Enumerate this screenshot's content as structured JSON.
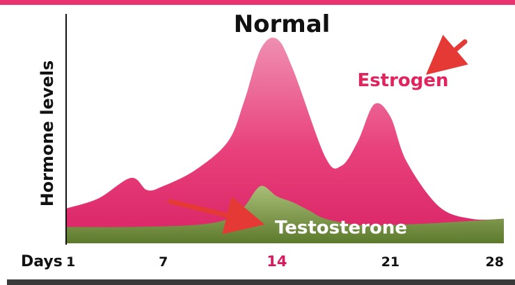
{
  "chart_data": {
    "type": "area",
    "title": "Normal",
    "xlabel": "Days",
    "ylabel": "Hormone levels",
    "x_ticks": [
      "1",
      "7",
      "14",
      "21",
      "28"
    ],
    "highlight_tick": "14",
    "xlim": [
      1,
      28
    ],
    "ylim": [
      0,
      1
    ],
    "series": [
      {
        "name": "Estrogen",
        "color": "#e8336f",
        "x": [
          1,
          3,
          5,
          6,
          7,
          9,
          11,
          12,
          13,
          14,
          15,
          17,
          18,
          19,
          20,
          21,
          22,
          24,
          26,
          28
        ],
        "values": [
          0.17,
          0.22,
          0.32,
          0.26,
          0.28,
          0.36,
          0.5,
          0.7,
          0.95,
          1.0,
          0.85,
          0.42,
          0.38,
          0.5,
          0.68,
          0.62,
          0.4,
          0.18,
          0.12,
          0.12
        ]
      },
      {
        "name": "Testosterone",
        "color": "#8aa24f",
        "x": [
          1,
          5,
          9,
          11,
          12,
          13,
          14,
          15,
          16,
          17,
          19,
          21,
          24,
          28
        ],
        "values": [
          0.08,
          0.08,
          0.09,
          0.12,
          0.18,
          0.28,
          0.23,
          0.2,
          0.16,
          0.12,
          0.09,
          0.09,
          0.1,
          0.12
        ]
      }
    ]
  },
  "colors": {
    "accent": "#e8336f",
    "estrogen_label": "#e0245e",
    "testosterone_label": "#ffffff",
    "arrow": "#e53935"
  }
}
